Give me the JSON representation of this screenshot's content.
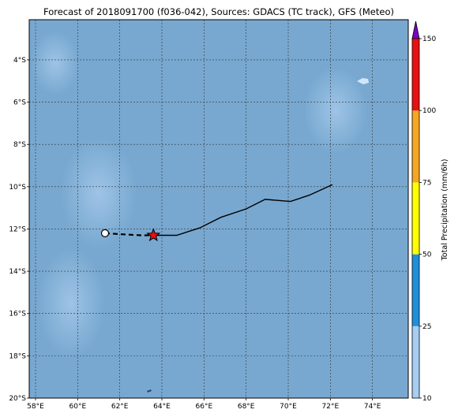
{
  "title": "Forecast of 2018091700 (f036-042), Sources: GDACS (TC track), GFS (Meteo)",
  "map": {
    "lon_range": [
      57.7,
      75.7
    ],
    "lat_range": [
      -20.0,
      -2.1
    ],
    "x_ticks": [
      {
        "value": 58,
        "label": "58°E"
      },
      {
        "value": 60,
        "label": "60°E"
      },
      {
        "value": 62,
        "label": "62°E"
      },
      {
        "value": 64,
        "label": "64°E"
      },
      {
        "value": 66,
        "label": "66°E"
      },
      {
        "value": 68,
        "label": "68°E"
      },
      {
        "value": 70,
        "label": "70°E"
      },
      {
        "value": 72,
        "label": "72°E"
      },
      {
        "value": 74,
        "label": "74°E"
      }
    ],
    "y_ticks": [
      {
        "value": -4,
        "label": "4°S"
      },
      {
        "value": -6,
        "label": "6°S"
      },
      {
        "value": -8,
        "label": "8°S"
      },
      {
        "value": -10,
        "label": "10°S"
      },
      {
        "value": -12,
        "label": "12°S"
      },
      {
        "value": -14,
        "label": "14°S"
      },
      {
        "value": -16,
        "label": "16°S"
      },
      {
        "value": -18,
        "label": "18°S"
      },
      {
        "value": -20,
        "label": "20°S"
      }
    ],
    "grid": true,
    "colors": {
      "ocean": "#78a8d0",
      "light_precip": "#a5c9ea",
      "grid": "#333333",
      "track": "#000000",
      "forecast_marker": "#e81010"
    }
  },
  "track": {
    "past": [
      [
        61.3,
        -12.2
      ],
      [
        62.1,
        -12.25
      ],
      [
        63.0,
        -12.3
      ],
      [
        63.5,
        -12.3
      ]
    ],
    "future": [
      [
        63.5,
        -12.3
      ],
      [
        64.0,
        -12.3
      ],
      [
        64.7,
        -12.3
      ],
      [
        65.8,
        -11.95
      ],
      [
        66.8,
        -11.45
      ],
      [
        68.0,
        -11.05
      ],
      [
        68.9,
        -10.6
      ],
      [
        70.1,
        -10.7
      ],
      [
        71.0,
        -10.4
      ],
      [
        72.1,
        -9.9
      ]
    ],
    "start_point": [
      61.3,
      -12.2
    ],
    "forecast_position": [
      63.6,
      -12.3
    ]
  },
  "colorbar": {
    "label": "Total Precipitation (mm/6h)",
    "levels": [
      10,
      25,
      50,
      75,
      100,
      150
    ],
    "colors": [
      "#a6cdf2",
      "#1f8fdc",
      "#ffff00",
      "#f5a623",
      "#e81010"
    ],
    "extend_color": "#7b00c6"
  }
}
